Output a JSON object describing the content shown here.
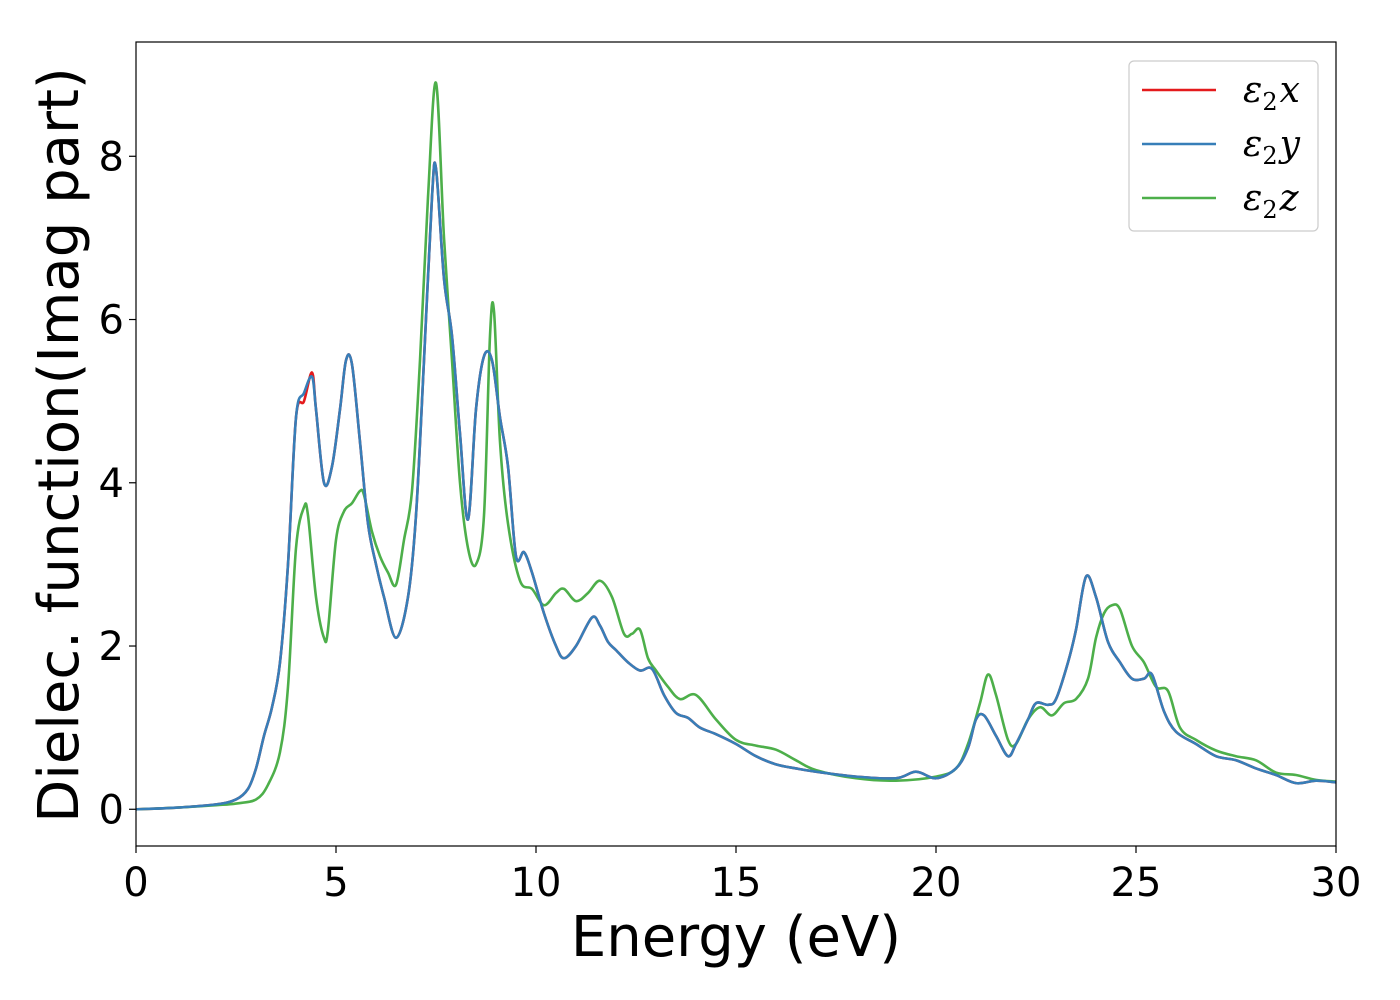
{
  "chart_data": {
    "type": "line",
    "xlabel": "Energy (eV)",
    "ylabel": "Dielec. function(Imag part)",
    "xlim": [
      0,
      30
    ],
    "ylim": [
      -0.45,
      9.4
    ],
    "xticks": [
      0,
      5,
      10,
      15,
      20,
      25,
      30
    ],
    "yticks": [
      0,
      2,
      4,
      6,
      8
    ],
    "grid": false,
    "legend_position": "top-right",
    "series": [
      {
        "name": "ε2x",
        "legend_base": "ε",
        "legend_sub": "2",
        "legend_var": "x",
        "color": "#e41a1c",
        "x": [
          0,
          1,
          2,
          2.5,
          2.8,
          3.0,
          3.2,
          3.4,
          3.6,
          3.8,
          4.0,
          4.2,
          4.4,
          4.5,
          4.7,
          4.9,
          5.1,
          5.25,
          5.4,
          5.6,
          5.8,
          6.0,
          6.2,
          6.5,
          6.8,
          7.0,
          7.2,
          7.4,
          7.5,
          7.7,
          7.9,
          8.1,
          8.3,
          8.5,
          8.7,
          8.9,
          9.1,
          9.3,
          9.5,
          9.7,
          9.9,
          10.2,
          10.5,
          10.7,
          11.0,
          11.4,
          11.6,
          11.8,
          12.0,
          12.3,
          12.6,
          12.9,
          13.2,
          13.5,
          13.8,
          14.1,
          14.5,
          15.0,
          15.5,
          16.0,
          16.5,
          17.0,
          18.0,
          19.0,
          19.5,
          20.0,
          20.5,
          20.8,
          21.0,
          21.2,
          21.5,
          21.8,
          22.0,
          22.3,
          22.5,
          22.8,
          23.0,
          23.3,
          23.5,
          23.75,
          24.0,
          24.3,
          24.6,
          24.9,
          25.2,
          25.4,
          25.7,
          26.0,
          26.5,
          27.0,
          27.5,
          28.0,
          28.5,
          29.0,
          29.5,
          30.0
        ],
        "y": [
          0.0,
          0.02,
          0.06,
          0.12,
          0.25,
          0.5,
          0.9,
          1.25,
          1.8,
          3.0,
          4.8,
          5.0,
          5.35,
          4.9,
          4.0,
          4.2,
          4.9,
          5.5,
          5.45,
          4.5,
          3.5,
          3.0,
          2.6,
          2.1,
          2.6,
          3.6,
          5.5,
          7.5,
          7.85,
          6.5,
          5.8,
          4.6,
          3.55,
          4.9,
          5.55,
          5.5,
          4.8,
          4.2,
          3.1,
          3.15,
          2.9,
          2.4,
          2.0,
          1.85,
          2.0,
          2.35,
          2.25,
          2.05,
          1.95,
          1.8,
          1.7,
          1.72,
          1.4,
          1.18,
          1.12,
          1.0,
          0.92,
          0.8,
          0.65,
          0.55,
          0.5,
          0.46,
          0.4,
          0.38,
          0.46,
          0.38,
          0.5,
          0.75,
          1.1,
          1.15,
          0.9,
          0.65,
          0.8,
          1.1,
          1.3,
          1.28,
          1.35,
          1.8,
          2.2,
          2.85,
          2.6,
          2.05,
          1.8,
          1.6,
          1.6,
          1.65,
          1.2,
          0.95,
          0.8,
          0.65,
          0.6,
          0.5,
          0.42,
          0.32,
          0.35,
          0.33
        ]
      },
      {
        "name": "ε2y",
        "legend_base": "ε",
        "legend_sub": "2",
        "legend_var": "y",
        "color": "#377eb8",
        "x": [
          0,
          1,
          2,
          2.5,
          2.8,
          3.0,
          3.2,
          3.4,
          3.6,
          3.8,
          4.0,
          4.2,
          4.4,
          4.5,
          4.7,
          4.9,
          5.1,
          5.25,
          5.4,
          5.6,
          5.8,
          6.0,
          6.2,
          6.5,
          6.8,
          7.0,
          7.2,
          7.4,
          7.5,
          7.7,
          7.9,
          8.1,
          8.3,
          8.5,
          8.7,
          8.9,
          9.1,
          9.3,
          9.5,
          9.7,
          9.9,
          10.2,
          10.5,
          10.7,
          11.0,
          11.4,
          11.6,
          11.8,
          12.0,
          12.3,
          12.6,
          12.9,
          13.2,
          13.5,
          13.8,
          14.1,
          14.5,
          15.0,
          15.5,
          16.0,
          16.5,
          17.0,
          18.0,
          19.0,
          19.5,
          20.0,
          20.5,
          20.8,
          21.0,
          21.2,
          21.5,
          21.8,
          22.0,
          22.3,
          22.5,
          22.8,
          23.0,
          23.3,
          23.5,
          23.75,
          24.0,
          24.3,
          24.6,
          24.9,
          25.2,
          25.4,
          25.7,
          26.0,
          26.5,
          27.0,
          27.5,
          28.0,
          28.5,
          29.0,
          29.5,
          30.0
        ],
        "y": [
          0.0,
          0.02,
          0.06,
          0.12,
          0.25,
          0.5,
          0.9,
          1.25,
          1.8,
          3.0,
          4.8,
          5.1,
          5.3,
          4.9,
          4.0,
          4.2,
          4.9,
          5.5,
          5.45,
          4.5,
          3.5,
          3.0,
          2.6,
          2.1,
          2.6,
          3.6,
          5.5,
          7.5,
          7.85,
          6.5,
          5.8,
          4.6,
          3.55,
          4.9,
          5.55,
          5.5,
          4.8,
          4.2,
          3.1,
          3.15,
          2.9,
          2.4,
          2.0,
          1.85,
          2.0,
          2.35,
          2.25,
          2.05,
          1.95,
          1.8,
          1.7,
          1.72,
          1.4,
          1.18,
          1.12,
          1.0,
          0.92,
          0.8,
          0.65,
          0.55,
          0.5,
          0.46,
          0.4,
          0.38,
          0.46,
          0.38,
          0.5,
          0.75,
          1.1,
          1.15,
          0.9,
          0.65,
          0.8,
          1.1,
          1.3,
          1.28,
          1.35,
          1.8,
          2.2,
          2.85,
          2.6,
          2.05,
          1.8,
          1.6,
          1.6,
          1.65,
          1.2,
          0.95,
          0.8,
          0.65,
          0.6,
          0.5,
          0.42,
          0.32,
          0.35,
          0.33
        ]
      },
      {
        "name": "ε2z",
        "legend_base": "ε",
        "legend_sub": "2",
        "legend_var": "z",
        "color": "#4daf4a",
        "x": [
          0,
          1,
          2,
          2.5,
          3.0,
          3.3,
          3.6,
          3.8,
          4.0,
          4.2,
          4.3,
          4.5,
          4.7,
          4.8,
          5.0,
          5.2,
          5.4,
          5.6,
          5.7,
          5.9,
          6.1,
          6.3,
          6.5,
          6.7,
          6.9,
          7.1,
          7.3,
          7.5,
          7.7,
          7.9,
          8.1,
          8.3,
          8.5,
          8.7,
          8.85,
          8.95,
          9.1,
          9.3,
          9.6,
          9.9,
          10.2,
          10.5,
          10.7,
          11.0,
          11.3,
          11.6,
          11.9,
          12.2,
          12.4,
          12.6,
          12.8,
          13.0,
          13.3,
          13.6,
          14.0,
          14.5,
          15.0,
          15.5,
          16.0,
          16.5,
          17.0,
          18.0,
          19.0,
          20.0,
          20.5,
          20.8,
          21.1,
          21.3,
          21.5,
          21.8,
          22.0,
          22.3,
          22.6,
          22.9,
          23.2,
          23.5,
          23.8,
          24.0,
          24.2,
          24.4,
          24.6,
          24.9,
          25.2,
          25.5,
          25.8,
          26.1,
          26.5,
          27.0,
          27.5,
          28.0,
          28.5,
          29.0,
          29.5,
          30.0
        ],
        "y": [
          0.0,
          0.02,
          0.05,
          0.07,
          0.12,
          0.3,
          0.7,
          1.5,
          3.2,
          3.7,
          3.6,
          2.6,
          2.1,
          2.2,
          3.3,
          3.65,
          3.75,
          3.9,
          3.85,
          3.4,
          3.1,
          2.9,
          2.75,
          3.3,
          3.9,
          5.5,
          7.5,
          8.9,
          7.0,
          5.5,
          4.0,
          3.2,
          3.0,
          3.6,
          5.8,
          6.1,
          4.5,
          3.5,
          2.8,
          2.7,
          2.5,
          2.65,
          2.7,
          2.55,
          2.65,
          2.8,
          2.6,
          2.15,
          2.15,
          2.2,
          1.85,
          1.7,
          1.5,
          1.35,
          1.4,
          1.1,
          0.85,
          0.78,
          0.73,
          0.6,
          0.48,
          0.38,
          0.35,
          0.4,
          0.5,
          0.8,
          1.3,
          1.65,
          1.4,
          0.85,
          0.8,
          1.1,
          1.25,
          1.15,
          1.3,
          1.35,
          1.6,
          2.1,
          2.4,
          2.5,
          2.45,
          2.0,
          1.8,
          1.5,
          1.45,
          1.0,
          0.85,
          0.72,
          0.65,
          0.6,
          0.45,
          0.42,
          0.36,
          0.34
        ]
      }
    ]
  }
}
